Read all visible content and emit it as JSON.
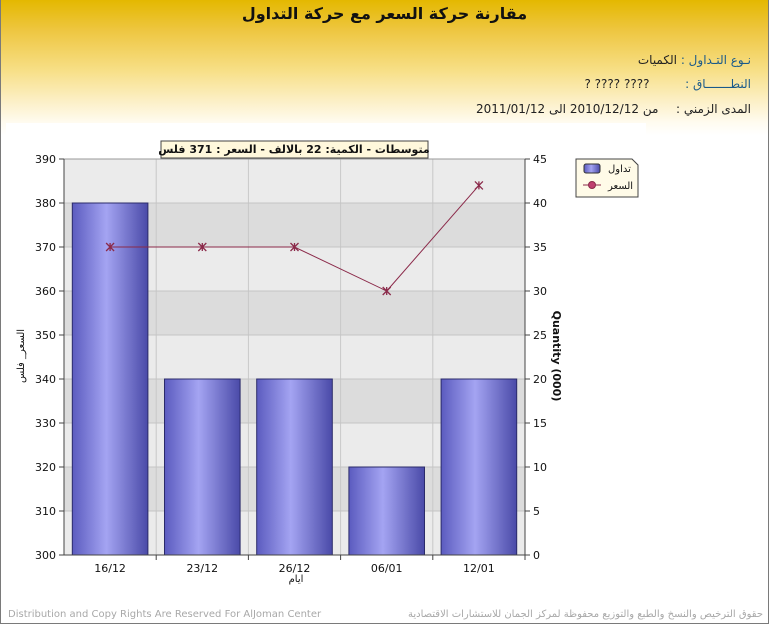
{
  "header": {
    "title": "مقارنة حركة السعر مع حركة التداول",
    "trading_type_label": "نـوع التـداول :",
    "trading_type_value": "الكميات",
    "sector_label": "النطـــــــاق :",
    "sector_value": "????     ???? ?",
    "period_label": "المدى الزمني :",
    "period_value": "من 2010/12/12 الى 2011/01/12"
  },
  "chart_data": {
    "type": "bar",
    "annotation": "متوسطات - الكمية: 22 بالالف   -  السعر : 371 فلس",
    "categories": [
      "16/12",
      "23/12",
      "26/12",
      "06/01",
      "12/01"
    ],
    "xlabel": "ايام",
    "ylabel_left": "السعر_ فلس",
    "ylabel_right": "Quantity (000)",
    "ylim_left": [
      300,
      390
    ],
    "ylim_right": [
      0,
      45
    ],
    "left_ticks": [
      300,
      310,
      320,
      330,
      340,
      350,
      360,
      370,
      380,
      390
    ],
    "right_ticks": [
      0,
      5,
      10,
      15,
      20,
      25,
      30,
      35,
      40,
      45
    ],
    "grid": true,
    "legend_position": "top-right",
    "series": [
      {
        "name": "تداول",
        "type": "bar",
        "axis": "right",
        "values": [
          40,
          20,
          20,
          10,
          20
        ],
        "color": "#8a8ae8"
      },
      {
        "name": "السعر",
        "type": "line",
        "axis": "left",
        "values": [
          370,
          370,
          370,
          360,
          384
        ],
        "color": "#8b2a4a"
      }
    ]
  },
  "footer": {
    "left": "Distribution and Copy Rights Are Reserved For AlJoman Center",
    "right": "حقوق الترخيص والنسخ والطبع والتوزيع محفوظة لمركز الجمان للاستشارات الاقتصادية"
  }
}
